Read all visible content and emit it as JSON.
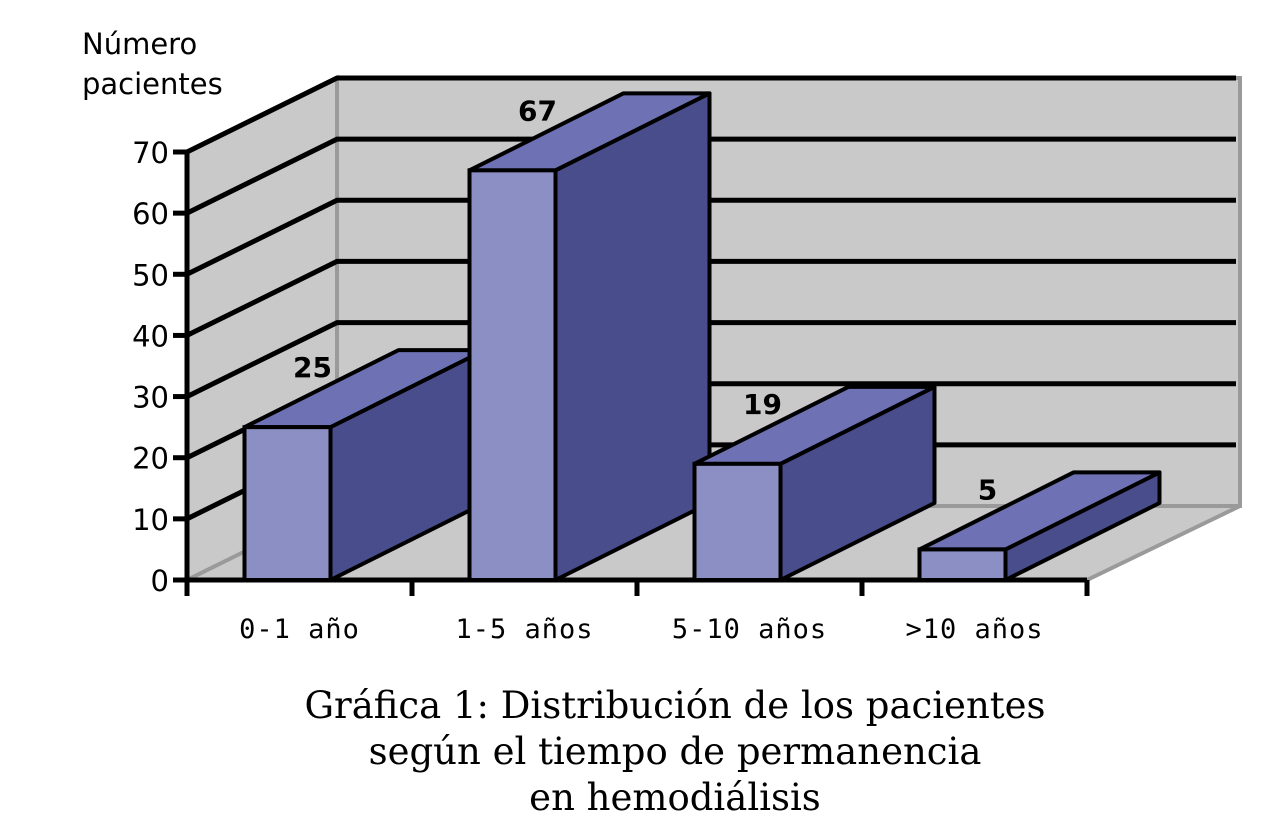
{
  "chart_data": {
    "type": "bar",
    "style": "3d",
    "ylabel": "Número pacientes",
    "ylabel_lines": [
      "Número",
      "pacientes"
    ],
    "categories": [
      "0-1 año",
      "1-5 años",
      "5-10 años",
      ">10 años"
    ],
    "values": [
      25,
      67,
      19,
      5
    ],
    "data_labels": [
      "25",
      "67",
      "19",
      "5"
    ],
    "yticks": [
      "0",
      "10",
      "20",
      "30",
      "40",
      "50",
      "60",
      "70"
    ],
    "ylim": [
      0,
      70
    ],
    "grid": true,
    "legend": "none",
    "caption_lines": [
      "Gráfica 1: Distribución de los pacientes",
      "según el tiempo de permanencia",
      "en hemodiálisis"
    ],
    "colors": {
      "bar_front": "#8C8FC3",
      "bar_side": "#4A4D8C",
      "bar_top": "#6E72B4",
      "wall": "#C9C9C9",
      "wall_edge": "#9A9A9A"
    }
  }
}
